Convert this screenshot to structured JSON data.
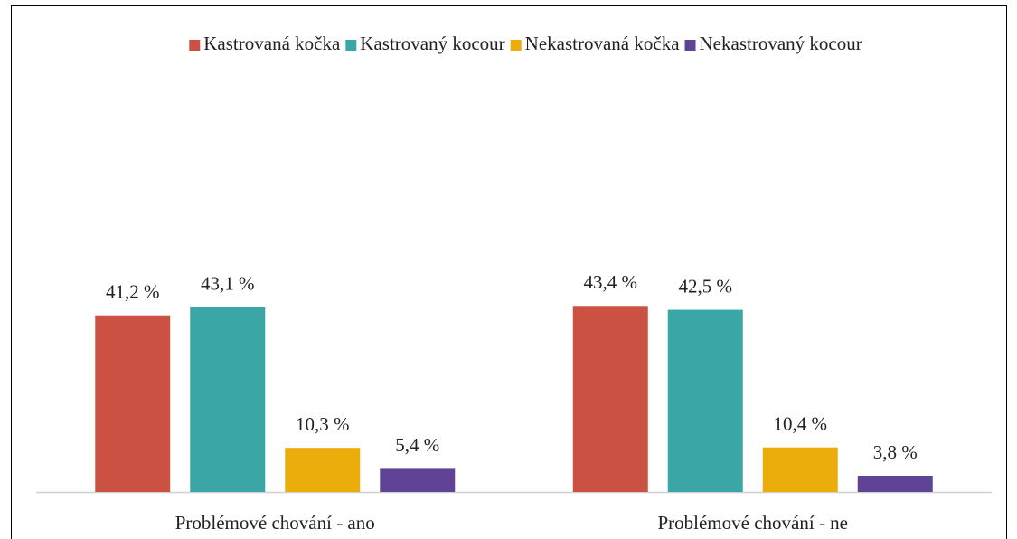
{
  "chart_data": {
    "type": "bar",
    "categories": [
      "Problémové chování - ano",
      "Problémové chování - ne"
    ],
    "series": [
      {
        "name": "Kastrovaná kočka",
        "color": "#cb5242",
        "values": [
          41.2,
          43.4
        ],
        "value_labels": [
          "41,2 %",
          "43,4 %"
        ]
      },
      {
        "name": "Kastrovaný kocour",
        "color": "#3aa6a6",
        "values": [
          43.1,
          42.5
        ],
        "value_labels": [
          "43,1 %",
          "42,5 %"
        ]
      },
      {
        "name": "Nekastrovaná kočka",
        "color": "#eaad0c",
        "values": [
          10.3,
          10.4
        ],
        "value_labels": [
          "10,3 %",
          "10,4 %"
        ]
      },
      {
        "name": "Nekastrovaný kocour",
        "color": "#5f4496",
        "values": [
          5.4,
          3.8
        ],
        "value_labels": [
          "5,4 %",
          "3,8 %"
        ]
      }
    ],
    "ylim": [
      0,
      50
    ],
    "legend": "top"
  }
}
